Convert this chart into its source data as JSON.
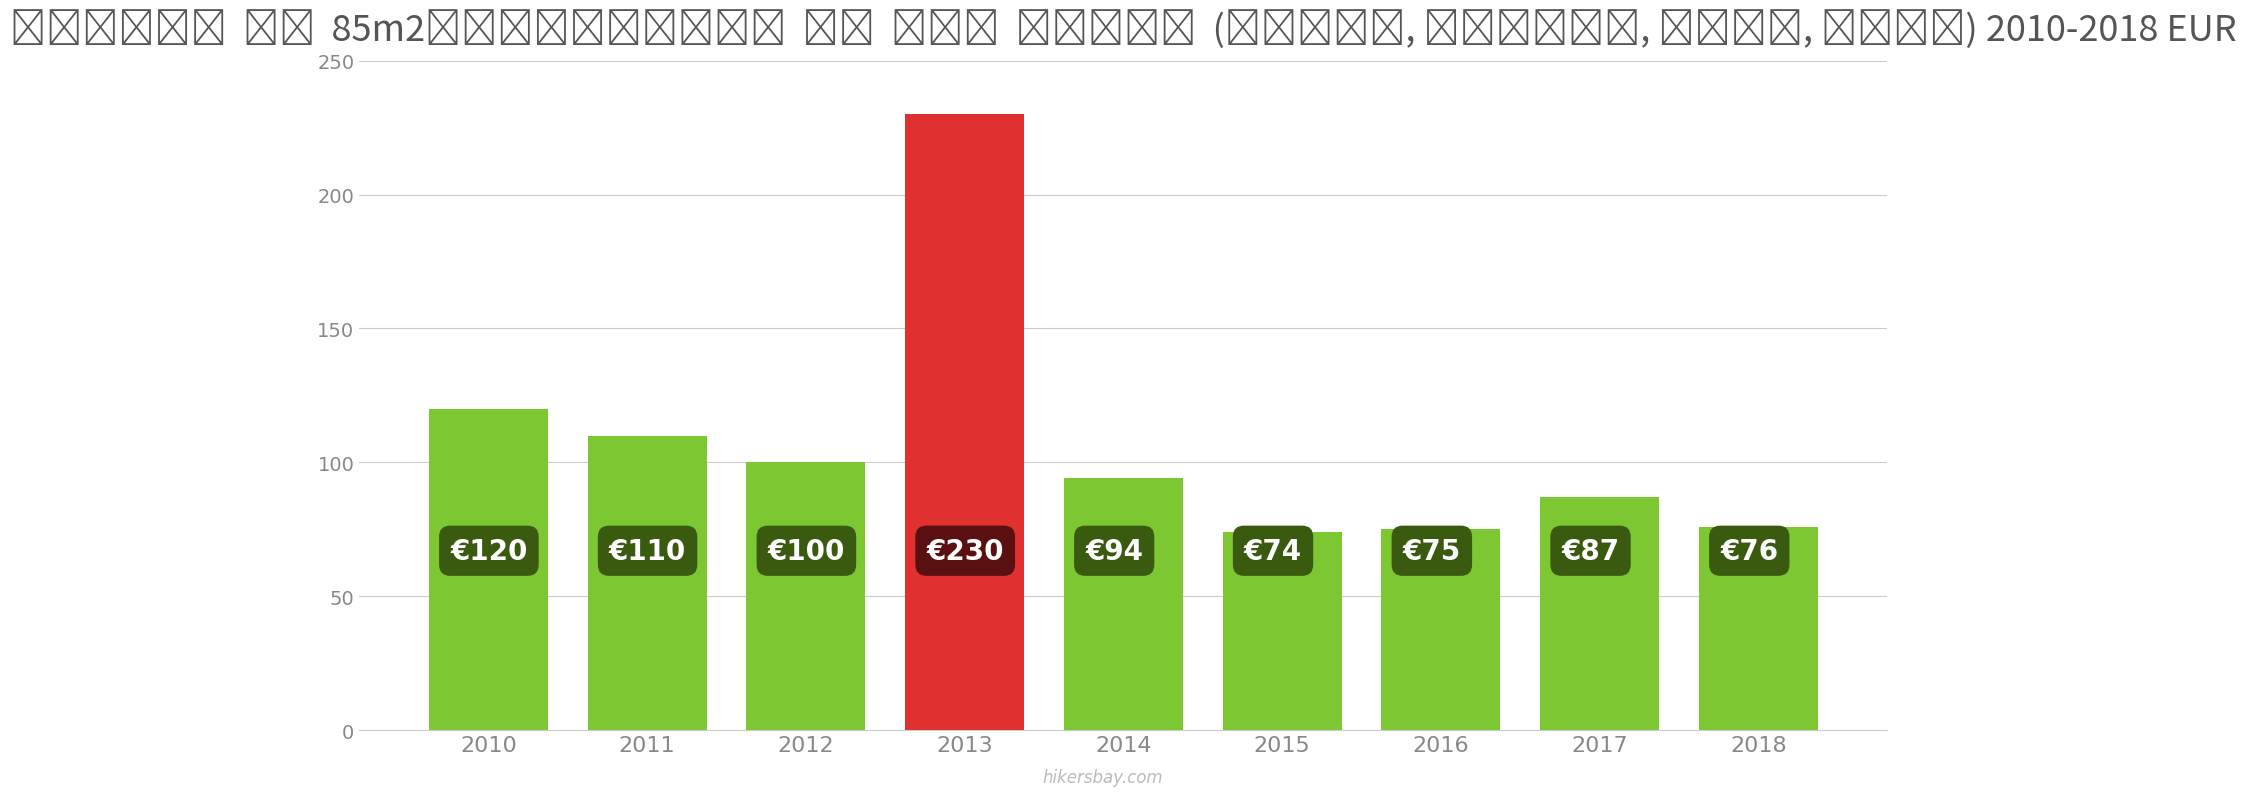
{
  "title": "माल्टा  एक  85m2अपार्टमेंट  के  लिए  शुल्क  (बिजली, हीटिंग, पानी, कचरा) 2010-2018 EUR",
  "years": [
    2010,
    2011,
    2012,
    2013,
    2014,
    2015,
    2016,
    2017,
    2018
  ],
  "values": [
    120,
    110,
    100,
    230,
    94,
    74,
    75,
    87,
    76
  ],
  "bar_colors": [
    "#7dc832",
    "#7dc832",
    "#7dc832",
    "#e03030",
    "#7dc832",
    "#7dc832",
    "#7dc832",
    "#7dc832",
    "#7dc832"
  ],
  "label_bg_green": "#3a5a10",
  "label_bg_red": "#5a1010",
  "label_text_color": "#ffffff",
  "ylim": [
    0,
    250
  ],
  "yticks": [
    0,
    50,
    100,
    150,
    200,
    250
  ],
  "background_color": "#ffffff",
  "grid_color": "#cccccc",
  "axis_color": "#cccccc",
  "tick_color": "#888888",
  "watermark": "hikersbay.com",
  "title_fontsize": 26,
  "label_fontsize": 20
}
